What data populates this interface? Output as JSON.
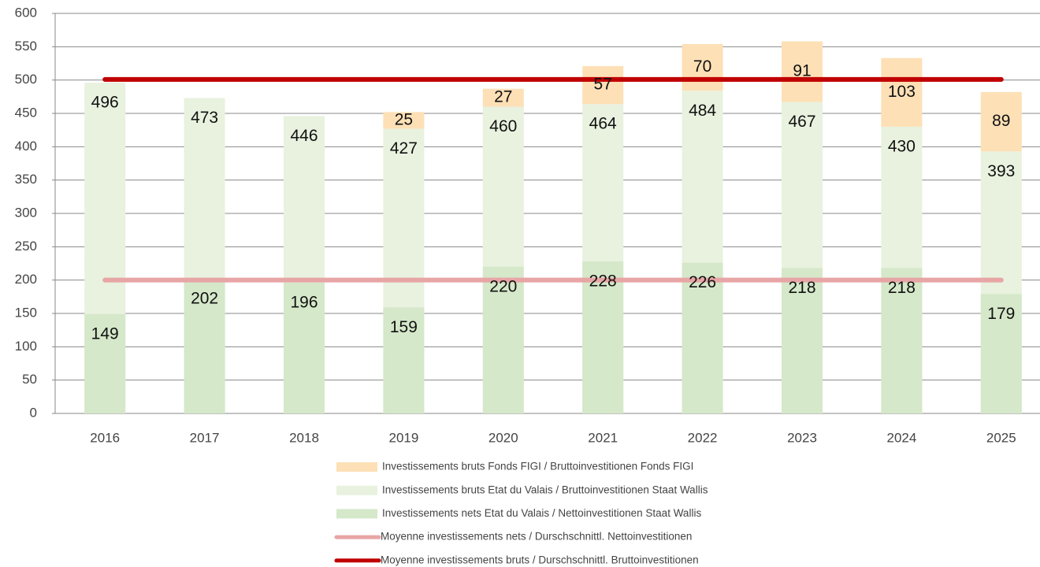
{
  "chart_data": {
    "type": "bar",
    "categories": [
      "2016",
      "2017",
      "2018",
      "2019",
      "2020",
      "2021",
      "2022",
      "2023",
      "2024",
      "2025"
    ],
    "series": [
      {
        "name": "Investissements bruts Fonds FIGI / Bruttoinvestitionen Fonds FIGI",
        "color": "#fde0b6",
        "stack_on": 1,
        "values": [
          null,
          null,
          null,
          25,
          27,
          57,
          70,
          91,
          103,
          89
        ]
      },
      {
        "name": "Investissements bruts Etat du Valais / Bruttoinvestitionen Staat Wallis",
        "color": "#e8f2df",
        "values": [
          496,
          473,
          446,
          427,
          460,
          464,
          484,
          467,
          430,
          393
        ]
      },
      {
        "name": "Investissements nets Etat du Valais / Nettoinvestitionen Staat Wallis",
        "color": "#d5e8c9",
        "values": [
          149,
          202,
          196,
          159,
          220,
          228,
          226,
          218,
          218,
          179
        ]
      }
    ],
    "lines": [
      {
        "name": "Moyenne investissements nets / Durschschnittl. Nettoinvestitionen",
        "color": "#e8a5a5",
        "value": 200
      },
      {
        "name": "Moyenne investissements bruts / Durschschnittl. Bruttoinvestitionen",
        "color": "#c00000",
        "value": 501
      }
    ],
    "ylim": [
      0,
      600
    ],
    "yticks": [
      0,
      50,
      100,
      150,
      200,
      250,
      300,
      350,
      400,
      450,
      500,
      550,
      600
    ],
    "grid": true
  }
}
